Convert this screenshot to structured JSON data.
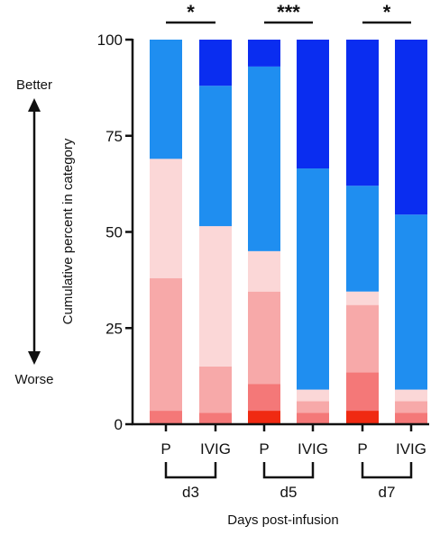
{
  "chart_data": {
    "type": "bar",
    "stacked": true,
    "ylabel": "Cumulative percent in category",
    "xlabel": "Days post-infusion",
    "ylim": [
      0,
      100
    ],
    "yticks": [
      0,
      25,
      50,
      75,
      100
    ],
    "side_labels": {
      "top": "Better",
      "bottom": "Worse"
    },
    "categories": [
      "P",
      "IVIG",
      "P",
      "IVIG",
      "P",
      "IVIG"
    ],
    "groups": [
      {
        "label": "d3",
        "bars": [
          0,
          1
        ],
        "significance": "*"
      },
      {
        "label": "d5",
        "bars": [
          2,
          3
        ],
        "significance": "***"
      },
      {
        "label": "d7",
        "bars": [
          4,
          5
        ],
        "significance": "*"
      }
    ],
    "category_colors": [
      "#f02a12",
      "#f47878",
      "#f7a9a9",
      "#fbd7d7",
      "#1f8ef0",
      "#0a2df0"
    ],
    "series": [
      {
        "values": [
          0,
          0,
          3.5,
          0,
          3.5,
          0
        ]
      },
      {
        "values": [
          3.5,
          3.0,
          7.0,
          3.0,
          10.0,
          3.0
        ]
      },
      {
        "values": [
          34.5,
          12.0,
          24.0,
          3.0,
          17.5,
          3.0
        ]
      },
      {
        "values": [
          31.0,
          36.5,
          10.5,
          3.0,
          3.5,
          3.0
        ]
      },
      {
        "values": [
          31.0,
          36.5,
          48.0,
          57.5,
          27.5,
          45.5
        ]
      },
      {
        "values": [
          0,
          12.0,
          7.0,
          33.5,
          38.0,
          45.5
        ]
      }
    ],
    "grid": false,
    "legend": "none"
  }
}
